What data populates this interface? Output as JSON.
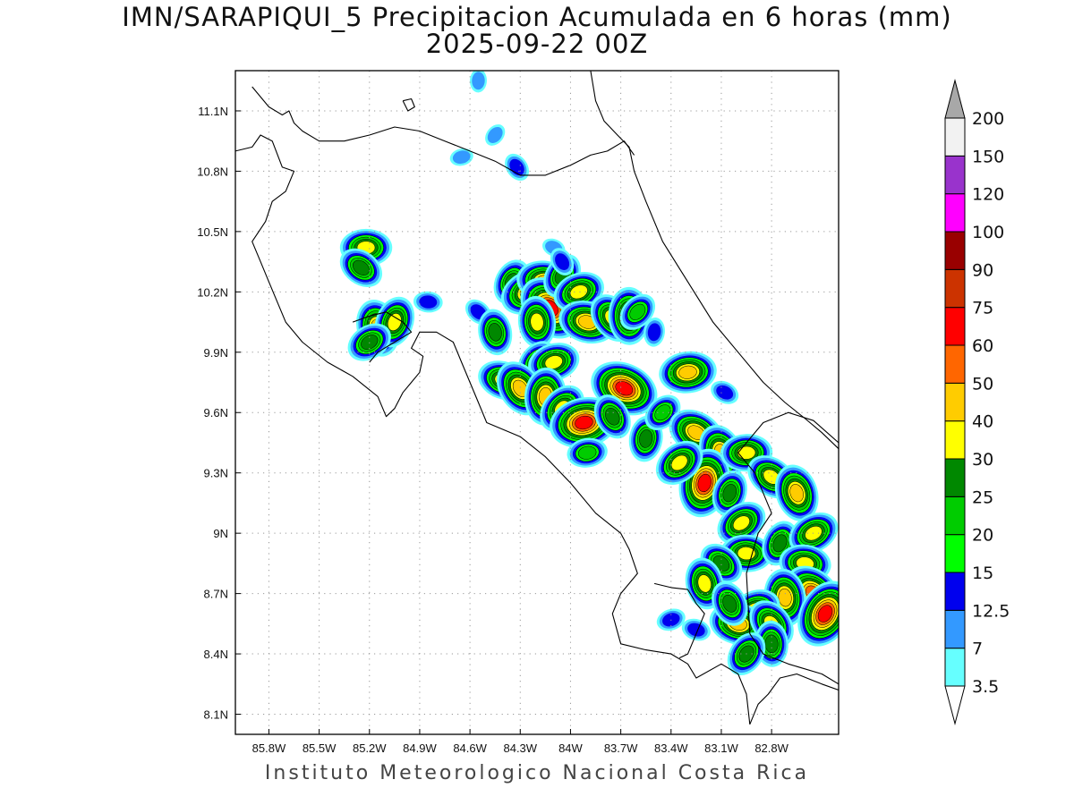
{
  "title": "IMN/SARAPIQUI_5 Precipitacion Acumulada en 6 horas (mm)",
  "subtitle": "2025-09-22 00Z",
  "footer": "Instituto Meteorologico Nacional Costa Rica",
  "map": {
    "lon_range": [
      -86.0,
      -82.4
    ],
    "lat_range": [
      8.0,
      11.3
    ],
    "lon_ticks": [
      {
        "value": -85.8,
        "label": "85.8W"
      },
      {
        "value": -85.5,
        "label": "85.5W"
      },
      {
        "value": -85.2,
        "label": "85.2W"
      },
      {
        "value": -84.9,
        "label": "84.9W"
      },
      {
        "value": -84.6,
        "label": "84.6W"
      },
      {
        "value": -84.3,
        "label": "84.3W"
      },
      {
        "value": -84.0,
        "label": "84W"
      },
      {
        "value": -83.7,
        "label": "83.7W"
      },
      {
        "value": -83.4,
        "label": "83.4W"
      },
      {
        "value": -83.1,
        "label": "83.1W"
      },
      {
        "value": -82.8,
        "label": "82.8W"
      }
    ],
    "lat_ticks": [
      {
        "value": 11.1,
        "label": "11.1N"
      },
      {
        "value": 10.8,
        "label": "10.8N"
      },
      {
        "value": 10.5,
        "label": "10.5N"
      },
      {
        "value": 10.2,
        "label": "10.2N"
      },
      {
        "value": 9.9,
        "label": "9.9N"
      },
      {
        "value": 9.6,
        "label": "9.6N"
      },
      {
        "value": 9.3,
        "label": "9.3N"
      },
      {
        "value": 9.0,
        "label": "9N"
      },
      {
        "value": 8.7,
        "label": "8.7N"
      },
      {
        "value": 8.4,
        "label": "8.4N"
      },
      {
        "value": 8.1,
        "label": "8.1N"
      }
    ],
    "grid": true
  },
  "colorbar": {
    "labels": [
      "3.5",
      "7",
      "12.5",
      "15",
      "20",
      "25",
      "30",
      "40",
      "50",
      "60",
      "75",
      "90",
      "100",
      "120",
      "150",
      "200"
    ],
    "colors": [
      "#66ffff",
      "#3399ff",
      "#0000ee",
      "#00ff00",
      "#00cc00",
      "#008800",
      "#ffff00",
      "#ffcc00",
      "#ff6600",
      "#ff0000",
      "#cc3300",
      "#990000",
      "#ff00ff",
      "#9933cc",
      "#f2f2f2"
    ],
    "min_color": "#ffffff",
    "max_color": "#a8a8a8"
  },
  "rain_cells": [
    {
      "lon": -85.22,
      "lat": 10.42,
      "v": 30
    },
    {
      "lon": -85.25,
      "lat": 10.32,
      "v": 25
    },
    {
      "lon": -85.15,
      "lat": 10.02,
      "v": 40
    },
    {
      "lon": -85.05,
      "lat": 10.05,
      "v": 30
    },
    {
      "lon": -85.2,
      "lat": 9.95,
      "v": 25
    },
    {
      "lon": -84.85,
      "lat": 10.15,
      "v": 12.5
    },
    {
      "lon": -84.55,
      "lat": 10.1,
      "v": 12.5
    },
    {
      "lon": -84.45,
      "lat": 10.0,
      "v": 25
    },
    {
      "lon": -84.35,
      "lat": 10.25,
      "v": 25
    },
    {
      "lon": -84.25,
      "lat": 10.2,
      "v": 40
    },
    {
      "lon": -84.15,
      "lat": 10.25,
      "v": 40
    },
    {
      "lon": -84.12,
      "lat": 10.12,
      "v": 60
    },
    {
      "lon": -84.2,
      "lat": 10.05,
      "v": 30
    },
    {
      "lon": -84.05,
      "lat": 10.28,
      "v": 25
    },
    {
      "lon": -83.95,
      "lat": 10.2,
      "v": 30
    },
    {
      "lon": -83.9,
      "lat": 10.05,
      "v": 40
    },
    {
      "lon": -83.75,
      "lat": 10.07,
      "v": 30
    },
    {
      "lon": -83.65,
      "lat": 10.08,
      "v": 40
    },
    {
      "lon": -84.2,
      "lat": 9.85,
      "v": 25
    },
    {
      "lon": -84.1,
      "lat": 9.85,
      "v": 30
    },
    {
      "lon": -84.4,
      "lat": 9.76,
      "v": 30
    },
    {
      "lon": -84.3,
      "lat": 9.72,
      "v": 40
    },
    {
      "lon": -84.15,
      "lat": 9.68,
      "v": 40
    },
    {
      "lon": -84.05,
      "lat": 9.62,
      "v": 30
    },
    {
      "lon": -83.92,
      "lat": 9.55,
      "v": 60
    },
    {
      "lon": -83.68,
      "lat": 9.72,
      "v": 60
    },
    {
      "lon": -83.75,
      "lat": 9.58,
      "v": 25
    },
    {
      "lon": -83.55,
      "lat": 9.47,
      "v": 25
    },
    {
      "lon": -83.45,
      "lat": 9.6,
      "v": 20
    },
    {
      "lon": -83.3,
      "lat": 9.8,
      "v": 40
    },
    {
      "lon": -83.25,
      "lat": 9.5,
      "v": 40
    },
    {
      "lon": -83.1,
      "lat": 9.4,
      "v": 40
    },
    {
      "lon": -83.2,
      "lat": 9.25,
      "v": 60
    },
    {
      "lon": -83.35,
      "lat": 9.35,
      "v": 30
    },
    {
      "lon": -82.95,
      "lat": 9.4,
      "v": 30
    },
    {
      "lon": -82.8,
      "lat": 9.28,
      "v": 30
    },
    {
      "lon": -82.65,
      "lat": 9.2,
      "v": 40
    },
    {
      "lon": -83.05,
      "lat": 9.2,
      "v": 25
    },
    {
      "lon": -82.98,
      "lat": 9.05,
      "v": 30
    },
    {
      "lon": -82.95,
      "lat": 8.9,
      "v": 30
    },
    {
      "lon": -83.1,
      "lat": 8.85,
      "v": 25
    },
    {
      "lon": -83.2,
      "lat": 8.75,
      "v": 30
    },
    {
      "lon": -82.75,
      "lat": 8.95,
      "v": 25
    },
    {
      "lon": -82.55,
      "lat": 9.0,
      "v": 30
    },
    {
      "lon": -82.6,
      "lat": 8.85,
      "v": 30
    },
    {
      "lon": -82.55,
      "lat": 8.7,
      "v": 50
    },
    {
      "lon": -82.72,
      "lat": 8.68,
      "v": 40
    },
    {
      "lon": -82.48,
      "lat": 8.6,
      "v": 60
    },
    {
      "lon": -82.9,
      "lat": 8.62,
      "v": 30
    },
    {
      "lon": -83.0,
      "lat": 8.55,
      "v": 40
    },
    {
      "lon": -82.8,
      "lat": 8.55,
      "v": 30
    },
    {
      "lon": -82.8,
      "lat": 8.45,
      "v": 25
    },
    {
      "lon": -82.95,
      "lat": 8.4,
      "v": 25
    },
    {
      "lon": -83.4,
      "lat": 8.57,
      "v": 12.5
    },
    {
      "lon": -83.25,
      "lat": 8.52,
      "v": 12.5
    },
    {
      "lon": -84.32,
      "lat": 10.82,
      "v": 12.5
    },
    {
      "lon": -84.55,
      "lat": 11.25,
      "v": 7
    },
    {
      "lon": -84.45,
      "lat": 10.98,
      "v": 7
    },
    {
      "lon": -84.65,
      "lat": 10.87,
      "v": 7
    },
    {
      "lon": -84.1,
      "lat": 10.42,
      "v": 7
    },
    {
      "lon": -84.05,
      "lat": 10.35,
      "v": 12.5
    },
    {
      "lon": -83.5,
      "lat": 10.0,
      "v": 12.5
    },
    {
      "lon": -83.6,
      "lat": 10.1,
      "v": 20
    },
    {
      "lon": -83.9,
      "lat": 9.4,
      "v": 20
    },
    {
      "lon": -83.08,
      "lat": 9.7,
      "v": 12.5
    },
    {
      "lon": -83.05,
      "lat": 8.65,
      "v": 25
    }
  ],
  "coastlines": [
    [
      [
        -85.9,
        11.22
      ],
      [
        -85.8,
        11.12
      ],
      [
        -85.72,
        11.08
      ],
      [
        -85.68,
        11.1
      ],
      [
        -85.65,
        11.04
      ],
      [
        -85.6,
        11.0
      ],
      [
        -85.5,
        10.95
      ],
      [
        -85.35,
        10.95
      ],
      [
        -85.2,
        10.98
      ],
      [
        -85.05,
        11.02
      ],
      [
        -84.9,
        11.0
      ],
      [
        -84.75,
        10.95
      ],
      [
        -84.6,
        10.9
      ],
      [
        -84.45,
        10.85
      ],
      [
        -84.3,
        10.78
      ],
      [
        -84.15,
        10.78
      ],
      [
        -84.0,
        10.83
      ],
      [
        -83.88,
        10.88
      ],
      [
        -83.78,
        10.9
      ],
      [
        -83.68,
        10.95
      ],
      [
        -83.62,
        10.88
      ]
    ],
    [
      [
        -83.88,
        11.3
      ],
      [
        -83.85,
        11.15
      ],
      [
        -83.8,
        11.05
      ],
      [
        -83.72,
        10.98
      ],
      [
        -83.65,
        10.92
      ],
      [
        -83.62,
        10.8
      ],
      [
        -83.55,
        10.65
      ],
      [
        -83.45,
        10.45
      ],
      [
        -83.3,
        10.25
      ],
      [
        -83.15,
        10.05
      ],
      [
        -83.0,
        9.9
      ],
      [
        -82.85,
        9.75
      ],
      [
        -82.72,
        9.65
      ],
      [
        -82.6,
        9.57
      ],
      [
        -82.5,
        9.5
      ],
      [
        -82.4,
        9.42
      ]
    ],
    [
      [
        -86.0,
        10.9
      ],
      [
        -85.9,
        10.92
      ],
      [
        -85.85,
        10.98
      ],
      [
        -85.78,
        10.95
      ],
      [
        -85.72,
        10.82
      ],
      [
        -85.65,
        10.8
      ],
      [
        -85.7,
        10.7
      ],
      [
        -85.78,
        10.65
      ],
      [
        -85.82,
        10.55
      ],
      [
        -85.9,
        10.45
      ],
      [
        -85.85,
        10.35
      ],
      [
        -85.8,
        10.25
      ],
      [
        -85.75,
        10.15
      ],
      [
        -85.7,
        10.05
      ],
      [
        -85.6,
        9.95
      ],
      [
        -85.45,
        9.85
      ],
      [
        -85.3,
        9.78
      ],
      [
        -85.15,
        9.68
      ],
      [
        -85.1,
        9.58
      ],
      [
        -85.05,
        9.62
      ],
      [
        -85.0,
        9.7
      ],
      [
        -84.95,
        9.75
      ],
      [
        -84.9,
        9.8
      ],
      [
        -84.88,
        9.88
      ],
      [
        -84.95,
        9.92
      ],
      [
        -84.9,
        10.0
      ],
      [
        -84.8,
        10.0
      ],
      [
        -84.7,
        9.95
      ],
      [
        -84.65,
        9.85
      ],
      [
        -84.6,
        9.75
      ],
      [
        -84.55,
        9.65
      ],
      [
        -84.5,
        9.55
      ],
      [
        -84.3,
        9.48
      ],
      [
        -84.15,
        9.38
      ],
      [
        -84.0,
        9.25
      ],
      [
        -83.85,
        9.1
      ],
      [
        -83.7,
        9.0
      ],
      [
        -83.65,
        8.92
      ],
      [
        -83.6,
        8.8
      ],
      [
        -83.7,
        8.7
      ],
      [
        -83.75,
        8.6
      ],
      [
        -83.7,
        8.45
      ],
      [
        -83.55,
        8.42
      ],
      [
        -83.4,
        8.4
      ],
      [
        -83.3,
        8.35
      ],
      [
        -83.25,
        8.28
      ],
      [
        -83.1,
        8.35
      ],
      [
        -83.0,
        8.3
      ],
      [
        -82.95,
        8.2
      ],
      [
        -82.93,
        8.05
      ]
    ],
    [
      [
        -85.3,
        10.05
      ],
      [
        -85.2,
        10.08
      ],
      [
        -85.1,
        10.1
      ],
      [
        -85.0,
        10.05
      ],
      [
        -84.95,
        10.0
      ],
      [
        -85.05,
        9.95
      ],
      [
        -85.15,
        9.9
      ],
      [
        -85.2,
        9.85
      ]
    ],
    [
      [
        -83.5,
        8.75
      ],
      [
        -83.4,
        8.73
      ],
      [
        -83.3,
        8.72
      ],
      [
        -83.25,
        8.65
      ],
      [
        -83.2,
        8.6
      ],
      [
        -83.25,
        8.5
      ],
      [
        -83.3,
        8.4
      ],
      [
        -83.35,
        8.38
      ]
    ],
    [
      [
        -82.93,
        8.05
      ],
      [
        -82.88,
        8.15
      ],
      [
        -82.82,
        8.2
      ],
      [
        -82.75,
        8.28
      ],
      [
        -82.65,
        8.3
      ],
      [
        -82.5,
        8.25
      ],
      [
        -82.4,
        8.22
      ]
    ],
    [
      [
        -82.4,
        8.25
      ],
      [
        -82.5,
        8.3
      ],
      [
        -82.7,
        8.35
      ],
      [
        -82.85,
        8.4
      ],
      [
        -82.93,
        8.5
      ],
      [
        -82.95,
        8.8
      ],
      [
        -82.88,
        9.0
      ],
      [
        -82.8,
        9.1
      ],
      [
        -82.9,
        9.3
      ],
      [
        -83.0,
        9.4
      ],
      [
        -82.85,
        9.55
      ],
      [
        -82.7,
        9.6
      ],
      [
        -82.55,
        9.56
      ],
      [
        -82.4,
        9.45
      ]
    ],
    [
      [
        -85.0,
        11.15
      ],
      [
        -84.97,
        11.1
      ],
      [
        -84.93,
        11.12
      ],
      [
        -84.95,
        11.16
      ],
      [
        -85.0,
        11.15
      ]
    ]
  ]
}
